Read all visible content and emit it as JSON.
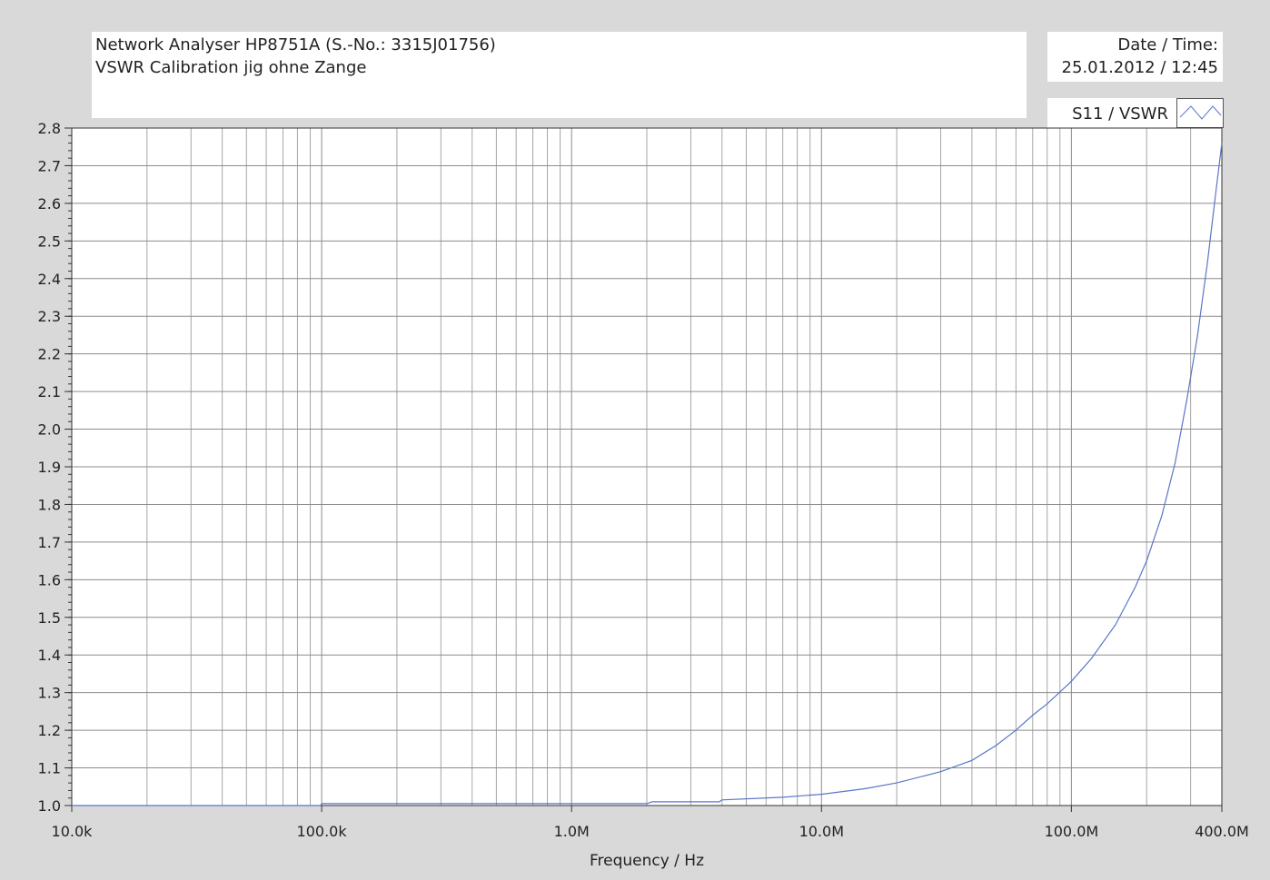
{
  "header": {
    "title_line1": "Network Analyser HP8751A (S.-No.: 3315J01756)",
    "title_line2": "VSWR Calibration jig ohne Zange",
    "date_label": "Date / Time:",
    "date_value": "25.01.2012 / 12:45"
  },
  "legend": {
    "label": "S11 / VSWR",
    "icon": "line-swatch-icon"
  },
  "colors": {
    "background": "#d9d9d9",
    "plot_area": "#ffffff",
    "grid_major": "#8c8c8c",
    "grid_minor": "#a6a6a6",
    "series": "#5a76c8"
  },
  "chart_data": {
    "type": "line",
    "xscale": "log",
    "xlim": [
      10000,
      400000000
    ],
    "ylim": [
      1.0,
      2.8
    ],
    "xlabel": "Frequency / Hz",
    "ylabel": "",
    "grid": true,
    "legend_position": "top-right",
    "x_ticks": [
      {
        "value": 10000,
        "label": "10.0k"
      },
      {
        "value": 100000,
        "label": "100.0k"
      },
      {
        "value": 1000000,
        "label": "1.0M"
      },
      {
        "value": 10000000,
        "label": "10.0M"
      },
      {
        "value": 100000000,
        "label": "100.0M"
      },
      {
        "value": 400000000,
        "label": "400.0M"
      }
    ],
    "y_ticks": [
      {
        "value": 1.0,
        "label": "1.0"
      },
      {
        "value": 1.1,
        "label": "1.1"
      },
      {
        "value": 1.2,
        "label": "1.2"
      },
      {
        "value": 1.3,
        "label": "1.3"
      },
      {
        "value": 1.4,
        "label": "1.4"
      },
      {
        "value": 1.5,
        "label": "1.5"
      },
      {
        "value": 1.6,
        "label": "1.6"
      },
      {
        "value": 1.7,
        "label": "1.7"
      },
      {
        "value": 1.8,
        "label": "1.8"
      },
      {
        "value": 1.9,
        "label": "1.9"
      },
      {
        "value": 2.0,
        "label": "2.0"
      },
      {
        "value": 2.1,
        "label": "2.1"
      },
      {
        "value": 2.2,
        "label": "2.2"
      },
      {
        "value": 2.3,
        "label": "2.3"
      },
      {
        "value": 2.4,
        "label": "2.4"
      },
      {
        "value": 2.5,
        "label": "2.5"
      },
      {
        "value": 2.6,
        "label": "2.6"
      },
      {
        "value": 2.7,
        "label": "2.7"
      },
      {
        "value": 2.8,
        "label": "2.8"
      }
    ],
    "series": [
      {
        "name": "S11 / VSWR",
        "x": [
          10000,
          30000,
          99000,
          100000,
          300000,
          1000000,
          2000000,
          2100000,
          3900000,
          4000000,
          7000000,
          10000000,
          15000000,
          20000000,
          30000000,
          40000000,
          50000000,
          60000000,
          70000000,
          80000000,
          100000000,
          120000000,
          150000000,
          180000000,
          200000000,
          230000000,
          260000000,
          290000000,
          320000000,
          350000000,
          380000000,
          400000000
        ],
        "y": [
          1.0,
          1.0,
          1.0,
          1.005,
          1.005,
          1.005,
          1.005,
          1.01,
          1.01,
          1.015,
          1.022,
          1.03,
          1.045,
          1.06,
          1.09,
          1.12,
          1.16,
          1.2,
          1.24,
          1.27,
          1.33,
          1.39,
          1.48,
          1.58,
          1.65,
          1.77,
          1.91,
          2.08,
          2.25,
          2.44,
          2.64,
          2.76
        ]
      }
    ]
  }
}
